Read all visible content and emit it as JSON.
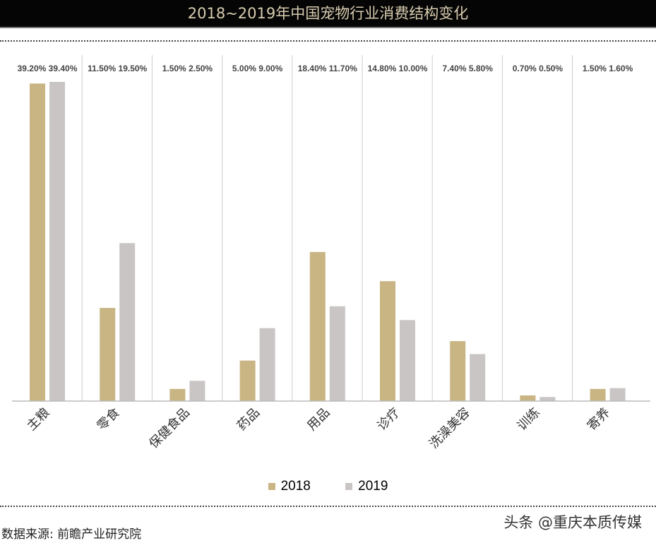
{
  "chart_data": {
    "type": "bar",
    "title": "2018~2019年中国宠物行业消费结构变化",
    "categories": [
      "主粮",
      "零食",
      "保健食品",
      "药品",
      "用品",
      "诊疗",
      "洗澡美容",
      "训练",
      "寄养"
    ],
    "series": [
      {
        "name": "2018",
        "color": "#c8b583",
        "values": [
          39.2,
          11.5,
          1.5,
          5.0,
          18.4,
          14.8,
          7.4,
          0.7,
          1.5
        ],
        "labels": [
          "39.20%",
          "11.50%",
          "1.50%",
          "5.00%",
          "18.40%",
          "14.80%",
          "7.40%",
          "0.70%",
          "1.50%"
        ]
      },
      {
        "name": "2019",
        "color": "#c9c5c4",
        "values": [
          39.4,
          19.5,
          2.5,
          9.0,
          11.7,
          10.0,
          5.8,
          0.5,
          1.6
        ],
        "labels": [
          "39.40%",
          "19.50%",
          "2.50%",
          "9.00%",
          "11.70%",
          "10.00%",
          "5.80%",
          "0.50%",
          "1.60%"
        ]
      }
    ],
    "xlabel": "",
    "ylabel": "",
    "ylim": [
      0,
      40
    ],
    "grid": false,
    "legend": "bottom"
  },
  "source": "数据来源: 前瞻产业研究院",
  "watermark": "头条 @重庆本质传媒"
}
